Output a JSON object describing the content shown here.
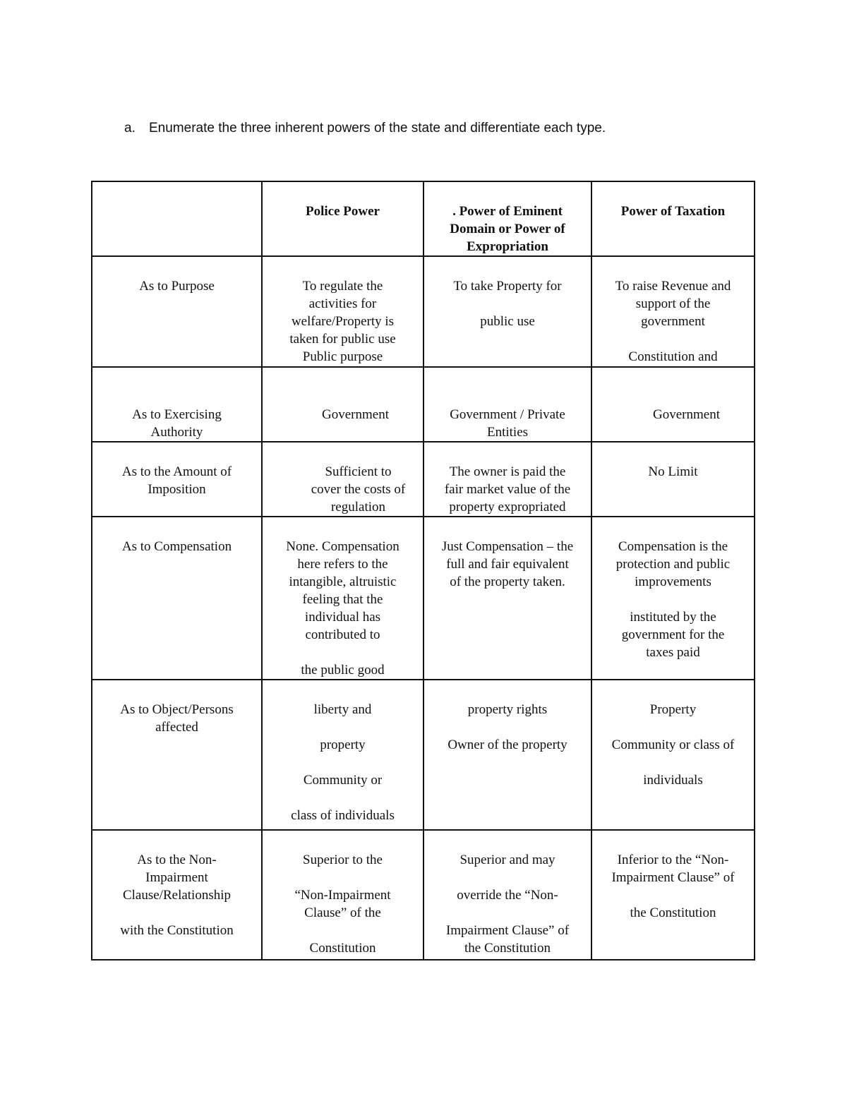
{
  "question": {
    "label": "a.",
    "text": "Enumerate the three inherent powers of the state and differentiate each type."
  },
  "table": {
    "header": [
      {
        "lines": []
      },
      {
        "lines": [
          "Police Power"
        ]
      },
      {
        "lines": [
          ". Power of Eminent",
          "Domain or Power of",
          "Expropriation"
        ]
      },
      {
        "lines": [
          "Power of Taxation"
        ]
      }
    ],
    "rows": [
      {
        "cells": [
          {
            "lines": [
              "As to Purpose"
            ]
          },
          {
            "lines": [
              "To regulate the",
              "activities for",
              "welfare/Property is",
              "taken for public use",
              "Public purpose"
            ]
          },
          {
            "lines": [
              "To take Property for",
              "",
              "public use"
            ]
          },
          {
            "lines": [
              "To raise Revenue and",
              "support of the",
              "government",
              "",
              "Constitution and"
            ]
          }
        ]
      },
      {
        "cells": [
          {
            "lines": [
              "",
              "As to Exercising",
              "Authority"
            ]
          },
          {
            "lines": [
              "",
              "Government"
            ]
          },
          {
            "lines": [
              "",
              "Government / Private",
              "Entities"
            ]
          },
          {
            "lines": [
              "",
              "Government"
            ]
          }
        ]
      },
      {
        "cells": [
          {
            "lines": [
              "As to the Amount of",
              "Imposition"
            ]
          },
          {
            "lines": [
              "Sufficient to",
              "cover the costs of",
              "regulation"
            ]
          },
          {
            "lines": [
              "The owner is paid the",
              "fair market value of the",
              "property expropriated"
            ]
          },
          {
            "lines": [
              "No Limit"
            ]
          }
        ]
      },
      {
        "cells": [
          {
            "lines": [
              "As to Compensation"
            ]
          },
          {
            "lines": [
              "None. Compensation",
              "here refers to the",
              "intangible, altruistic",
              "feeling that the",
              "individual has",
              "contributed to",
              "",
              "the public good"
            ]
          },
          {
            "lines": [
              "Just Compensation – the",
              "full and fair equivalent",
              "of the property taken."
            ]
          },
          {
            "lines": [
              "Compensation is the",
              "protection and public",
              "improvements",
              "",
              "instituted by the",
              "government for the",
              "taxes paid"
            ]
          }
        ]
      },
      {
        "cells": [
          {
            "lines": [
              "As to Object/Persons",
              "affected"
            ]
          },
          {
            "lines": [
              "liberty and",
              "",
              "property",
              "",
              "Community or",
              "",
              "class of individuals"
            ]
          },
          {
            "lines": [
              "property rights",
              "",
              "Owner of the property"
            ]
          },
          {
            "lines": [
              "Property",
              "",
              "Community or class of",
              "",
              "individuals"
            ]
          }
        ]
      },
      {
        "cells": [
          {
            "lines": [
              "As to the Non-",
              "Impairment",
              "Clause/Relationship",
              "",
              "with the Constitution"
            ]
          },
          {
            "lines": [
              "Superior to the",
              "",
              "“Non-Impairment",
              "Clause” of the",
              "",
              "Constitution"
            ]
          },
          {
            "lines": [
              "Superior and may",
              "",
              "override the “Non-",
              "",
              "Impairment Clause” of",
              "the Constitution"
            ]
          },
          {
            "lines": [
              "Inferior to the “Non-",
              "Impairment Clause” of",
              "",
              "the Constitution"
            ]
          }
        ]
      }
    ]
  }
}
